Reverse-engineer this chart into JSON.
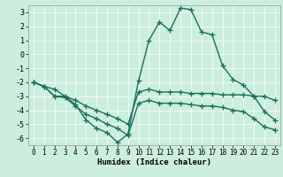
{
  "title": "",
  "xlabel": "Humidex (Indice chaleur)",
  "bg_color": "#cceedd",
  "line_color": "#1a7060",
  "grid_color": "#ffffff",
  "xlim": [
    -0.5,
    23.5
  ],
  "ylim": [
    -6.5,
    3.5
  ],
  "xticks": [
    0,
    1,
    2,
    3,
    4,
    5,
    6,
    7,
    8,
    9,
    10,
    11,
    12,
    13,
    14,
    15,
    16,
    17,
    18,
    19,
    20,
    21,
    22,
    23
  ],
  "yticks": [
    -6,
    -5,
    -4,
    -3,
    -2,
    -1,
    0,
    1,
    2,
    3
  ],
  "line1_x": [
    0,
    1,
    2,
    3,
    4,
    5,
    6,
    7,
    8,
    9,
    10,
    11,
    12,
    13,
    14,
    15,
    16,
    17,
    18,
    19,
    20,
    21,
    22,
    23
  ],
  "line1_y": [
    -2.0,
    -2.3,
    -2.5,
    -3.0,
    -3.6,
    -4.7,
    -5.3,
    -5.6,
    -6.3,
    -5.7,
    -1.9,
    1.0,
    2.3,
    1.7,
    3.3,
    3.2,
    1.6,
    1.4,
    -0.8,
    -1.8,
    -2.2,
    -3.0,
    -4.1,
    -4.7
  ],
  "line2_x": [
    0,
    1,
    2,
    3,
    4,
    5,
    6,
    7,
    8,
    9,
    10,
    11,
    12,
    13,
    14,
    15,
    16,
    17,
    18,
    19,
    20,
    21,
    22,
    23
  ],
  "line2_y": [
    -2.0,
    -2.3,
    -3.0,
    -3.0,
    -3.3,
    -3.7,
    -4.0,
    -4.3,
    -4.6,
    -5.0,
    -2.7,
    -2.5,
    -2.7,
    -2.7,
    -2.7,
    -2.8,
    -2.8,
    -2.8,
    -2.9,
    -2.9,
    -2.9,
    -3.0,
    -3.0,
    -3.3
  ],
  "line3_x": [
    0,
    1,
    2,
    3,
    4,
    5,
    6,
    7,
    8,
    9,
    10,
    11,
    12,
    13,
    14,
    15,
    16,
    17,
    18,
    19,
    20,
    21,
    22,
    23
  ],
  "line3_y": [
    -2.0,
    -2.3,
    -3.0,
    -3.1,
    -3.7,
    -4.3,
    -4.6,
    -5.0,
    -5.3,
    -5.8,
    -3.5,
    -3.3,
    -3.5,
    -3.5,
    -3.5,
    -3.6,
    -3.7,
    -3.7,
    -3.8,
    -4.0,
    -4.1,
    -4.6,
    -5.2,
    -5.4
  ],
  "marker": "+",
  "markersize": 4,
  "linewidth": 1.0,
  "tick_fontsize": 5.5,
  "xlabel_fontsize": 6.5
}
